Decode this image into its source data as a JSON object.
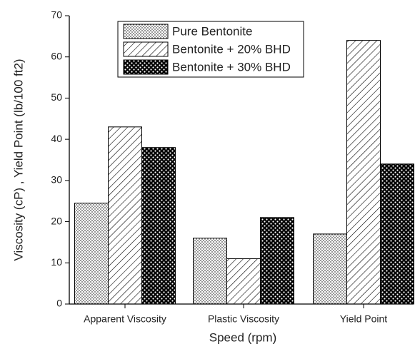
{
  "chart_data": {
    "type": "bar",
    "x_label": "Speed (rpm)",
    "y_label": "Viscosity (cP) , Yield Point  (lb/100 ft2)",
    "categories": [
      "Apparent Viscosity",
      "Plastic Viscosity",
      "Yield Point"
    ],
    "series": [
      {
        "name": "Pure Bentonite",
        "color": "#000000",
        "pattern": "dots",
        "values": [
          24.5,
          16,
          17
        ]
      },
      {
        "name": "Bentonite + 20% BHD",
        "color": "#000000",
        "pattern": "hatch",
        "values": [
          43,
          11,
          64
        ]
      },
      {
        "name": "Bentonite + 30% BHD",
        "color": "#000000",
        "pattern": "checker",
        "values": [
          38,
          21,
          34
        ]
      }
    ],
    "ylim": [
      0,
      70
    ],
    "yticks": [
      0,
      10,
      20,
      30,
      40,
      50,
      60,
      70
    ],
    "grid": false,
    "legend": "top"
  }
}
